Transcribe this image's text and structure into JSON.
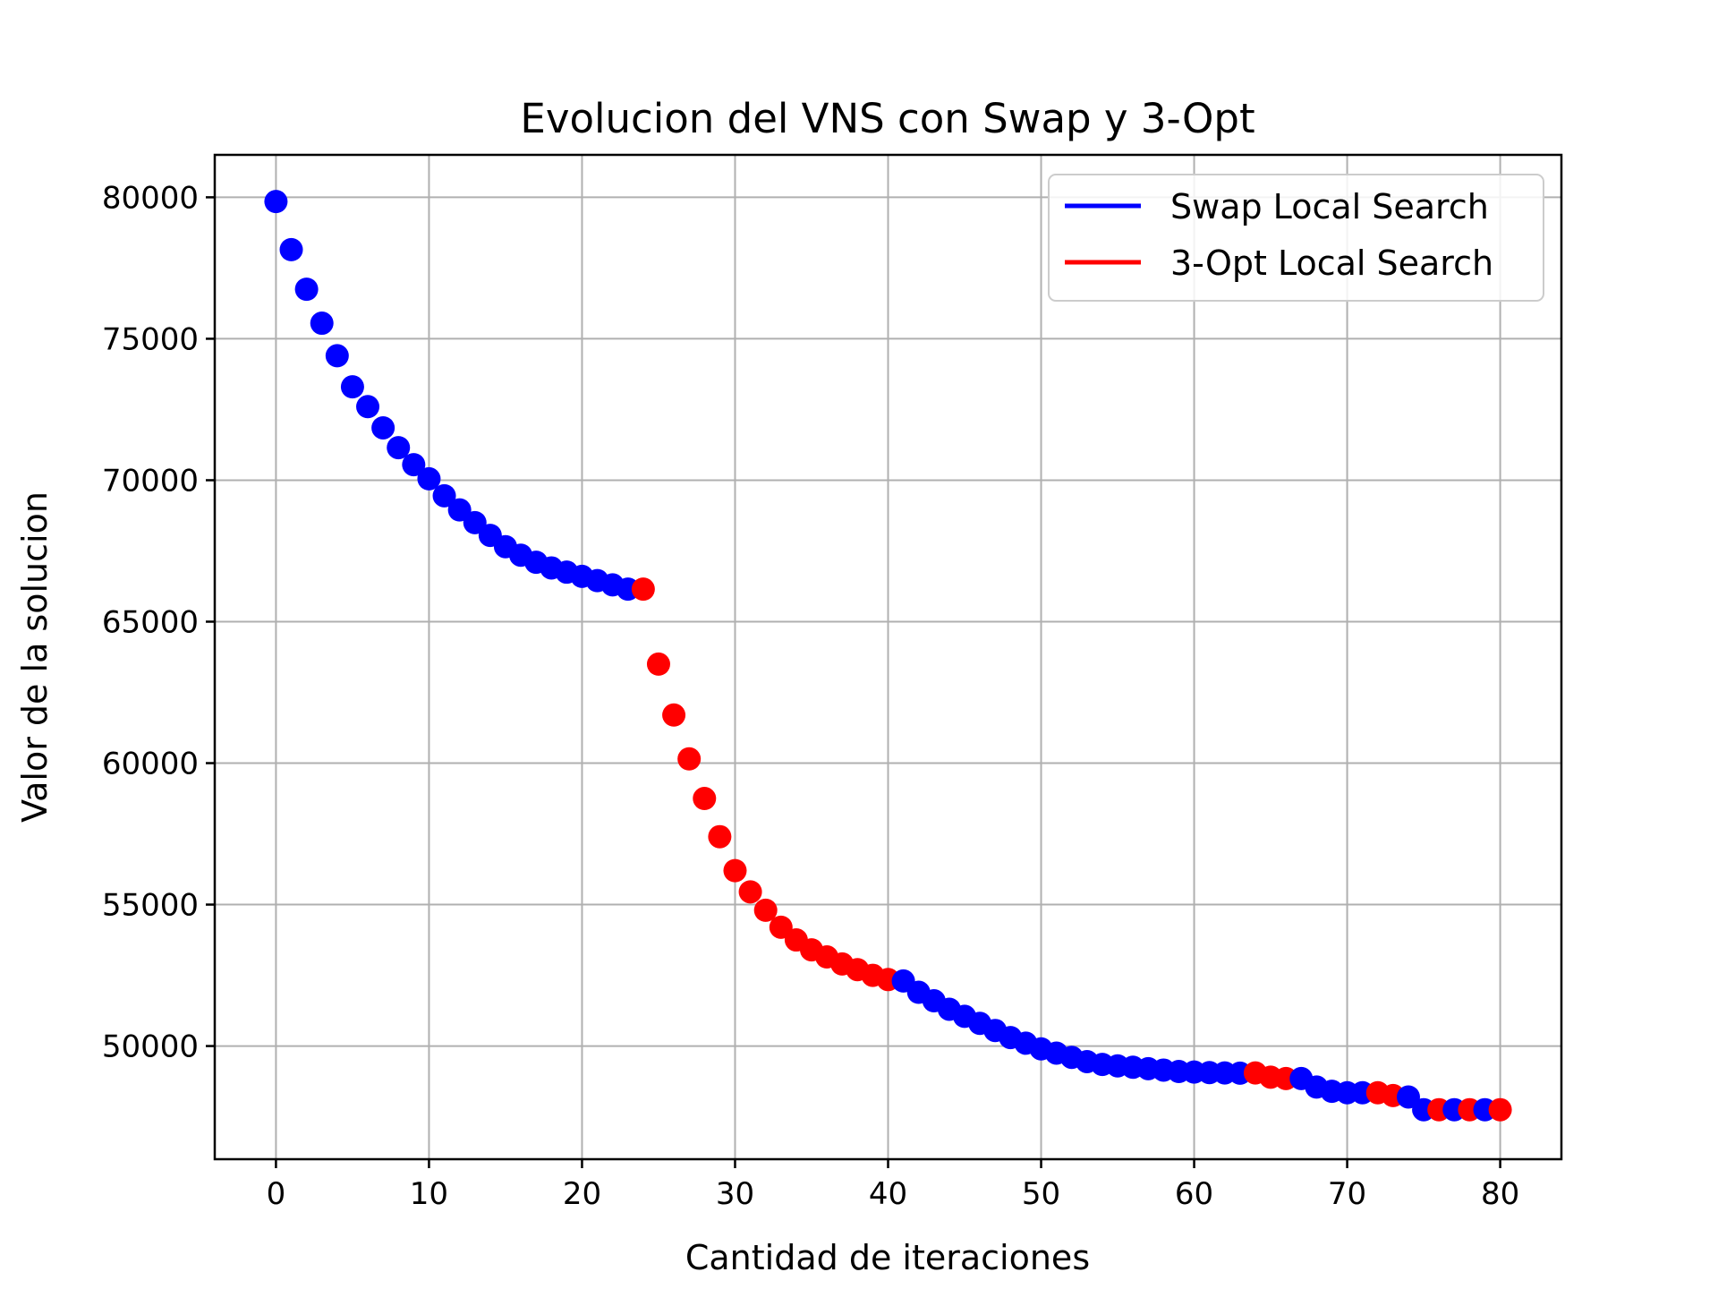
{
  "chart_data": {
    "type": "scatter",
    "title": "Evolucion del VNS con Swap y 3-Opt",
    "xlabel": "Cantidad de iteraciones",
    "ylabel": "Valor de la solucion",
    "xlim": [
      -4,
      84
    ],
    "ylim": [
      46000,
      81500
    ],
    "xticks": [
      0,
      10,
      20,
      30,
      40,
      50,
      60,
      70,
      80
    ],
    "yticks": [
      50000,
      55000,
      60000,
      65000,
      70000,
      75000,
      80000
    ],
    "grid": true,
    "legend_position": "top-right",
    "series": [
      {
        "name": "Swap Local Search",
        "color": "#0000ff",
        "points": [
          [
            0,
            79850
          ],
          [
            1,
            78150
          ],
          [
            2,
            76750
          ],
          [
            3,
            75550
          ],
          [
            4,
            74400
          ],
          [
            5,
            73300
          ],
          [
            6,
            72600
          ],
          [
            7,
            71850
          ],
          [
            8,
            71150
          ],
          [
            9,
            70550
          ],
          [
            10,
            70050
          ],
          [
            11,
            69450
          ],
          [
            12,
            68950
          ],
          [
            13,
            68500
          ],
          [
            14,
            68050
          ],
          [
            15,
            67650
          ],
          [
            16,
            67350
          ],
          [
            17,
            67100
          ],
          [
            18,
            66900
          ],
          [
            19,
            66750
          ],
          [
            20,
            66600
          ],
          [
            21,
            66450
          ],
          [
            22,
            66300
          ],
          [
            23,
            66150
          ],
          [
            41,
            52300
          ],
          [
            42,
            51900
          ],
          [
            43,
            51600
          ],
          [
            44,
            51300
          ],
          [
            45,
            51050
          ],
          [
            46,
            50800
          ],
          [
            47,
            50550
          ],
          [
            48,
            50300
          ],
          [
            49,
            50100
          ],
          [
            50,
            49900
          ],
          [
            51,
            49750
          ],
          [
            52,
            49600
          ],
          [
            53,
            49450
          ],
          [
            54,
            49350
          ],
          [
            55,
            49300
          ],
          [
            56,
            49250
          ],
          [
            57,
            49200
          ],
          [
            58,
            49150
          ],
          [
            59,
            49100
          ],
          [
            60,
            49080
          ],
          [
            61,
            49060
          ],
          [
            62,
            49050
          ],
          [
            63,
            49040
          ],
          [
            67,
            48850
          ],
          [
            68,
            48550
          ],
          [
            69,
            48400
          ],
          [
            70,
            48350
          ],
          [
            71,
            48350
          ],
          [
            74,
            48200
          ],
          [
            75,
            47750
          ],
          [
            77,
            47750
          ],
          [
            79,
            47750
          ]
        ]
      },
      {
        "name": "3-Opt Local Search",
        "color": "#ff0000",
        "points": [
          [
            24,
            66150
          ],
          [
            25,
            63500
          ],
          [
            26,
            61700
          ],
          [
            27,
            60150
          ],
          [
            28,
            58750
          ],
          [
            29,
            57400
          ],
          [
            30,
            56200
          ],
          [
            31,
            55450
          ],
          [
            32,
            54800
          ],
          [
            33,
            54200
          ],
          [
            34,
            53750
          ],
          [
            35,
            53400
          ],
          [
            36,
            53150
          ],
          [
            37,
            52900
          ],
          [
            38,
            52700
          ],
          [
            39,
            52500
          ],
          [
            40,
            52350
          ],
          [
            64,
            49050
          ],
          [
            65,
            48900
          ],
          [
            66,
            48850
          ],
          [
            72,
            48350
          ],
          [
            73,
            48250
          ],
          [
            76,
            47750
          ],
          [
            78,
            47750
          ],
          [
            80,
            47750
          ]
        ]
      }
    ]
  }
}
